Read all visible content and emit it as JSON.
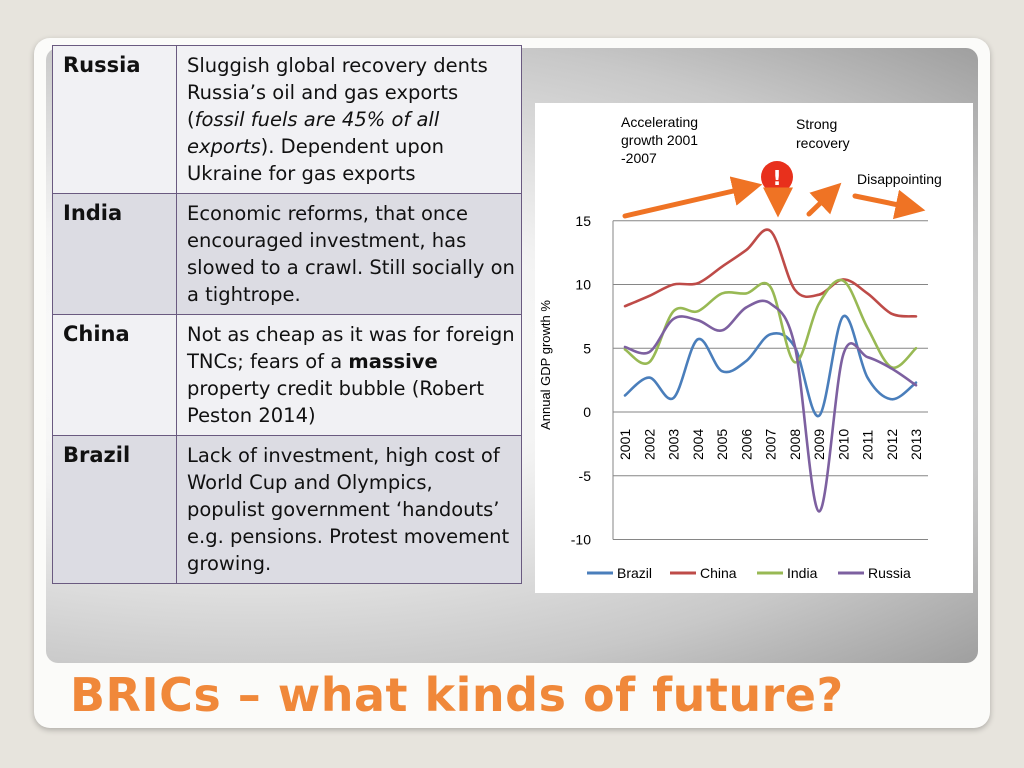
{
  "table": {
    "rows": [
      {
        "country": "Russia",
        "segments": [
          {
            "t": "Sluggish global recovery dents Russia’s oil and gas exports (",
            "s": "n"
          },
          {
            "t": "fossil fuels are 45% of all exports",
            "s": "i"
          },
          {
            "t": "). Dependent upon Ukraine for gas exports",
            "s": "n"
          }
        ]
      },
      {
        "country": "India",
        "segments": [
          {
            "t": "Economic reforms, that once encouraged investment, has slowed to a crawl. Still socially on a tightrope.",
            "s": "n"
          }
        ]
      },
      {
        "country": "China",
        "segments": [
          {
            "t": "Not as cheap as it was for foreign TNCs; fears of a ",
            "s": "n"
          },
          {
            "t": "massive",
            "s": "b"
          },
          {
            "t": " property credit bubble (Robert Peston 2014)",
            "s": "n"
          }
        ]
      },
      {
        "country": "Brazil",
        "segments": [
          {
            "t": "Lack of investment, high cost of World Cup and Olympics, populist government ‘handouts’ e.g. pensions. Protest movement growing.",
            "s": "n"
          }
        ]
      }
    ]
  },
  "annotations": {
    "accelerating": [
      "Accelerating",
      "growth 2001",
      "-2007"
    ],
    "strong": [
      "Strong",
      "recovery"
    ],
    "disappointing": "Disappointing",
    "alert": "!"
  },
  "chart_data": {
    "type": "line",
    "title": "",
    "xlabel": "",
    "ylabel": "Annual GDP growth %",
    "x": [
      "2001",
      "2002",
      "2003",
      "2004",
      "2005",
      "2006",
      "2007",
      "2008",
      "2009",
      "2010",
      "2011",
      "2012",
      "2013"
    ],
    "ylim": [
      -10,
      15
    ],
    "yticks": [
      15,
      10,
      5,
      0,
      -5,
      -10
    ],
    "grid": true,
    "legend": "bottom",
    "series": [
      {
        "name": "Brazil",
        "color": "#4a7ebb",
        "values": [
          1.3,
          2.7,
          1.1,
          5.7,
          3.2,
          4.0,
          6.1,
          5.1,
          -0.3,
          7.5,
          2.7,
          1.0,
          2.3
        ]
      },
      {
        "name": "China",
        "color": "#be4b48",
        "values": [
          8.3,
          9.1,
          10.0,
          10.1,
          11.4,
          12.7,
          14.2,
          9.6,
          9.2,
          10.4,
          9.3,
          7.7,
          7.5
        ]
      },
      {
        "name": "India",
        "color": "#98b954",
        "values": [
          4.9,
          3.9,
          7.9,
          7.9,
          9.3,
          9.3,
          9.8,
          3.9,
          8.5,
          10.3,
          6.6,
          3.5,
          5.0
        ]
      },
      {
        "name": "Russia",
        "color": "#7d60a0",
        "values": [
          5.1,
          4.7,
          7.3,
          7.2,
          6.4,
          8.2,
          8.5,
          5.2,
          -7.8,
          4.5,
          4.3,
          3.4,
          2.1
        ]
      }
    ]
  },
  "title": "BRICs – what kinds of future?"
}
